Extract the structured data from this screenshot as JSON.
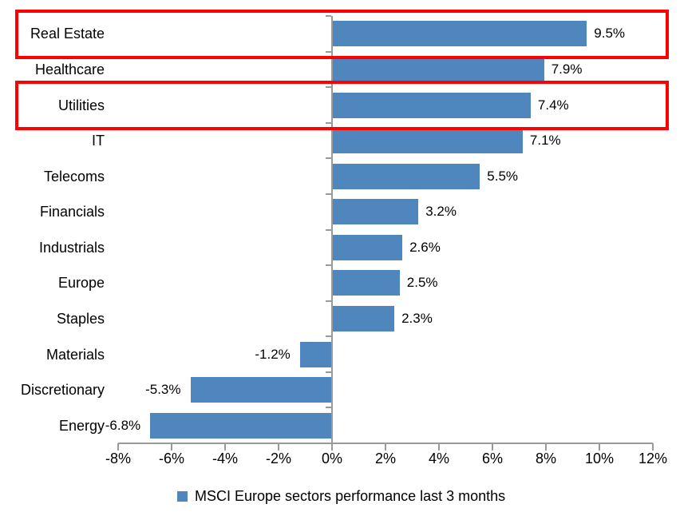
{
  "chart_data": {
    "type": "bar",
    "orientation": "horizontal",
    "title": "",
    "categories": [
      "Real Estate",
      "Healthcare",
      "Utilities",
      "IT",
      "Telecoms",
      "Financials",
      "Industrials",
      "Europe",
      "Staples",
      "Materials",
      "Discretionary",
      "Energy"
    ],
    "values": [
      9.5,
      7.9,
      7.4,
      7.1,
      5.5,
      3.2,
      2.6,
      2.5,
      2.3,
      -1.2,
      -5.3,
      -6.8
    ],
    "value_labels": [
      "9.5%",
      "7.9%",
      "7.4%",
      "7.1%",
      "5.5%",
      "3.2%",
      "2.6%",
      "2.5%",
      "2.3%",
      "-1.2%",
      "-5.3%",
      "-6.8%"
    ],
    "xlim": [
      -8,
      12
    ],
    "x_tick_values": [
      -8,
      -6,
      -4,
      -2,
      0,
      2,
      4,
      6,
      8,
      10,
      12
    ],
    "x_tick_labels": [
      "-8%",
      "-6%",
      "-4%",
      "-2%",
      "0%",
      "2%",
      "4%",
      "6%",
      "8%",
      "10%",
      "12%"
    ],
    "grid": false,
    "legend": {
      "position": "bottom",
      "marker": "square",
      "label": "MSCI Europe sectors performance last 3 months"
    },
    "colors": {
      "bar": "#4F86BD",
      "axis": "#9A9A9A",
      "highlight": "#FF0000",
      "text": "#000000",
      "background": "#FFFFFF"
    },
    "highlighted_categories": [
      "Real Estate",
      "Utilities"
    ]
  }
}
